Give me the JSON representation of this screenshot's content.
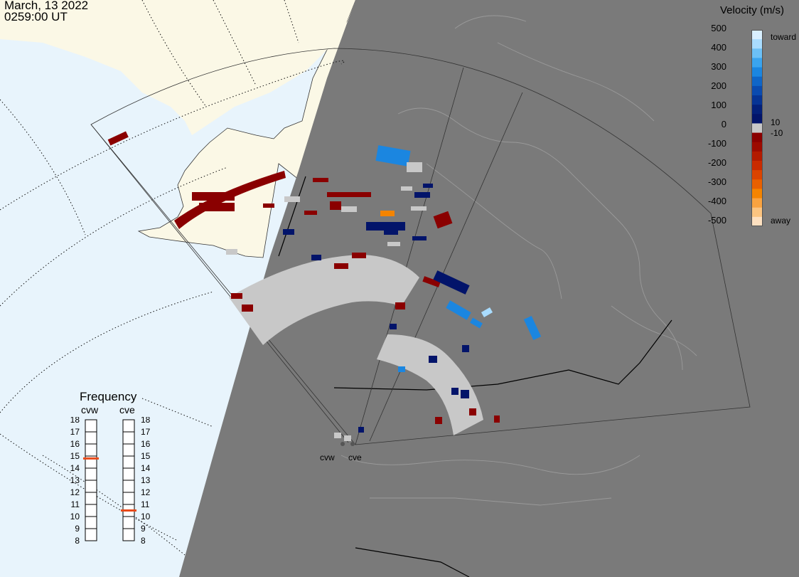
{
  "header": {
    "date": "March, 13 2022",
    "time": "0259:00 UT"
  },
  "legend": {
    "title": "Velocity (m/s)",
    "ticks": [
      "500",
      "400",
      "300",
      "200",
      "100",
      "0",
      "-100",
      "-200",
      "-300",
      "-400",
      "-500"
    ],
    "label_toward": "toward",
    "label_away": "away",
    "label_pos": "10",
    "label_neg": "-10",
    "colors": [
      "#d9efff",
      "#a9dcff",
      "#6cc0f6",
      "#3aa4ee",
      "#1b86e0",
      "#0f66c8",
      "#0a4bb0",
      "#063495",
      "#03207a",
      "#02146a",
      "#c8c8c8",
      "#8a0000",
      "#9c0a00",
      "#b31a00",
      "#c92a00",
      "#db4400",
      "#e86000",
      "#f48400",
      "#f9a340",
      "#fbc480",
      "#fde0c0"
    ]
  },
  "frequency": {
    "title": "Frequency",
    "radars": [
      "cvw",
      "cve"
    ],
    "scale": [
      "18",
      "17",
      "16",
      "15",
      "14",
      "13",
      "12",
      "11",
      "10",
      "9",
      "8"
    ],
    "cvw_mhz": 14.8,
    "cve_mhz": 10.5,
    "marker_color": "#e84a1a"
  },
  "map": {
    "radar_labels": [
      "cvw",
      "cve"
    ],
    "colors": {
      "ocean": "#e8f4fc",
      "land_day": "#fbf8e6",
      "night": "#7a7a7a",
      "ground_scatter": "#c8c8c8",
      "neg_velocity": "#8a0000",
      "pos_velocity": "#02146a",
      "pos_fast": "#1b86e0"
    }
  }
}
